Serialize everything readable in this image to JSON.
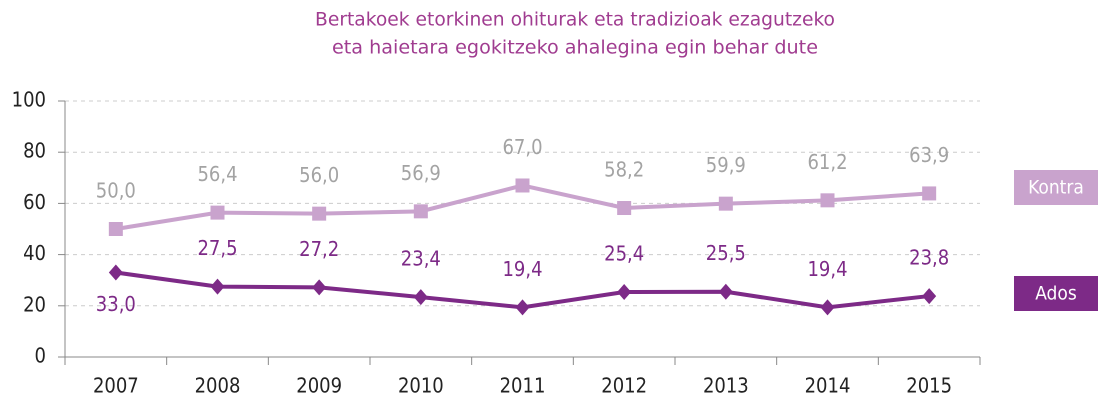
{
  "chart_data": {
    "type": "line",
    "title": [
      "Bertakoek etorkinen ohiturak eta tradizioak ezagutzeko",
      "eta haietara egokitzeko ahalegina egin behar dute"
    ],
    "categories": [
      "2007",
      "2008",
      "2009",
      "2010",
      "2011",
      "2012",
      "2013",
      "2014",
      "2015"
    ],
    "series": [
      {
        "name": "Kontra",
        "color": "#c9a3cd",
        "marker": "square",
        "label_color": "#a3a3a3",
        "values": [
          50.0,
          56.4,
          56.0,
          56.9,
          67.0,
          58.2,
          59.9,
          61.2,
          63.9
        ],
        "value_labels": [
          "50,0",
          "56,4",
          "56,0",
          "56,9",
          "67,0",
          "58,2",
          "59,9",
          "61,2",
          "63,9"
        ]
      },
      {
        "name": "Ados",
        "color": "#7d2a87",
        "marker": "diamond",
        "label_color": "#7d2a87",
        "values": [
          33.0,
          27.5,
          27.2,
          23.4,
          19.4,
          25.4,
          25.5,
          19.4,
          23.8
        ],
        "value_labels": [
          "33,0",
          "27,5",
          "27,2",
          "23,4",
          "19,4",
          "25,4",
          "25,5",
          "19,4",
          "23,8"
        ]
      }
    ],
    "ylim": [
      0,
      100
    ],
    "yticks": [
      0,
      20,
      40,
      60,
      80,
      100
    ],
    "grid": true
  }
}
